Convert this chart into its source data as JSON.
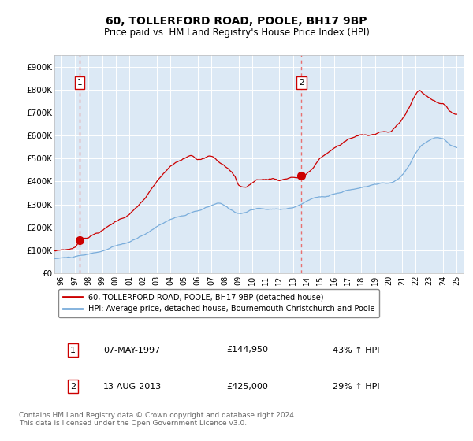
{
  "title": "60, TOLLERFORD ROAD, POOLE, BH17 9BP",
  "subtitle": "Price paid vs. HM Land Registry's House Price Index (HPI)",
  "background_color": "#dce9f5",
  "plot_bg_color": "#dce9f5",
  "ylim": [
    0,
    950000
  ],
  "yticks": [
    0,
    100000,
    200000,
    300000,
    400000,
    500000,
    600000,
    700000,
    800000,
    900000
  ],
  "ytick_labels": [
    "£0",
    "£100K",
    "£200K",
    "£300K",
    "£400K",
    "£500K",
    "£600K",
    "£700K",
    "£800K",
    "£900K"
  ],
  "xlim_start": 1995.5,
  "xlim_end": 2025.5,
  "xticks": [
    1996,
    1997,
    1998,
    1999,
    2000,
    2001,
    2002,
    2003,
    2004,
    2005,
    2006,
    2007,
    2008,
    2009,
    2010,
    2011,
    2012,
    2013,
    2014,
    2015,
    2016,
    2017,
    2018,
    2019,
    2020,
    2021,
    2022,
    2023,
    2024,
    2025
  ],
  "property_line_color": "#cc0000",
  "hpi_line_color": "#7aaddb",
  "dashed_line_color": "#e87070",
  "sale1_x": 1997.35,
  "sale1_y": 144950,
  "sale2_x": 2013.62,
  "sale2_y": 425000,
  "legend_line1": "60, TOLLERFORD ROAD, POOLE, BH17 9BP (detached house)",
  "legend_line2": "HPI: Average price, detached house, Bournemouth Christchurch and Poole",
  "table_row1": [
    "1",
    "07-MAY-1997",
    "£144,950",
    "43% ↑ HPI"
  ],
  "table_row2": [
    "2",
    "13-AUG-2013",
    "£425,000",
    "29% ↑ HPI"
  ],
  "footer": "Contains HM Land Registry data © Crown copyright and database right 2024.\nThis data is licensed under the Open Government Licence v3.0."
}
